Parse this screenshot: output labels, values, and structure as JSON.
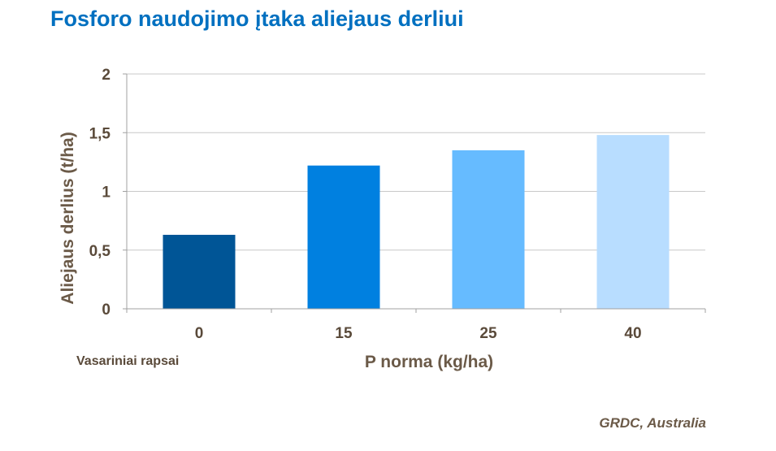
{
  "title": "Fosforo naudojimo įtaka aliejaus derliui",
  "note": "Vasariniai  rapsai",
  "source": "GRDC, Australia",
  "chart_data": {
    "type": "bar",
    "categories": [
      "0",
      "15",
      "25",
      "40"
    ],
    "values": [
      0.63,
      1.22,
      1.35,
      1.48
    ],
    "colors": [
      "#005596",
      "#0080e0",
      "#66bbff",
      "#b8ddff"
    ],
    "xlabel": "P norma (kg/ha)",
    "ylabel": "Aliejaus derlius (t/ha)",
    "ylim": [
      0,
      2
    ],
    "yticks": [
      0,
      0.5,
      1,
      1.5,
      2
    ],
    "ytick_labels": [
      "0",
      "0,5",
      "1",
      "1,5",
      "2"
    ],
    "grid": true
  }
}
